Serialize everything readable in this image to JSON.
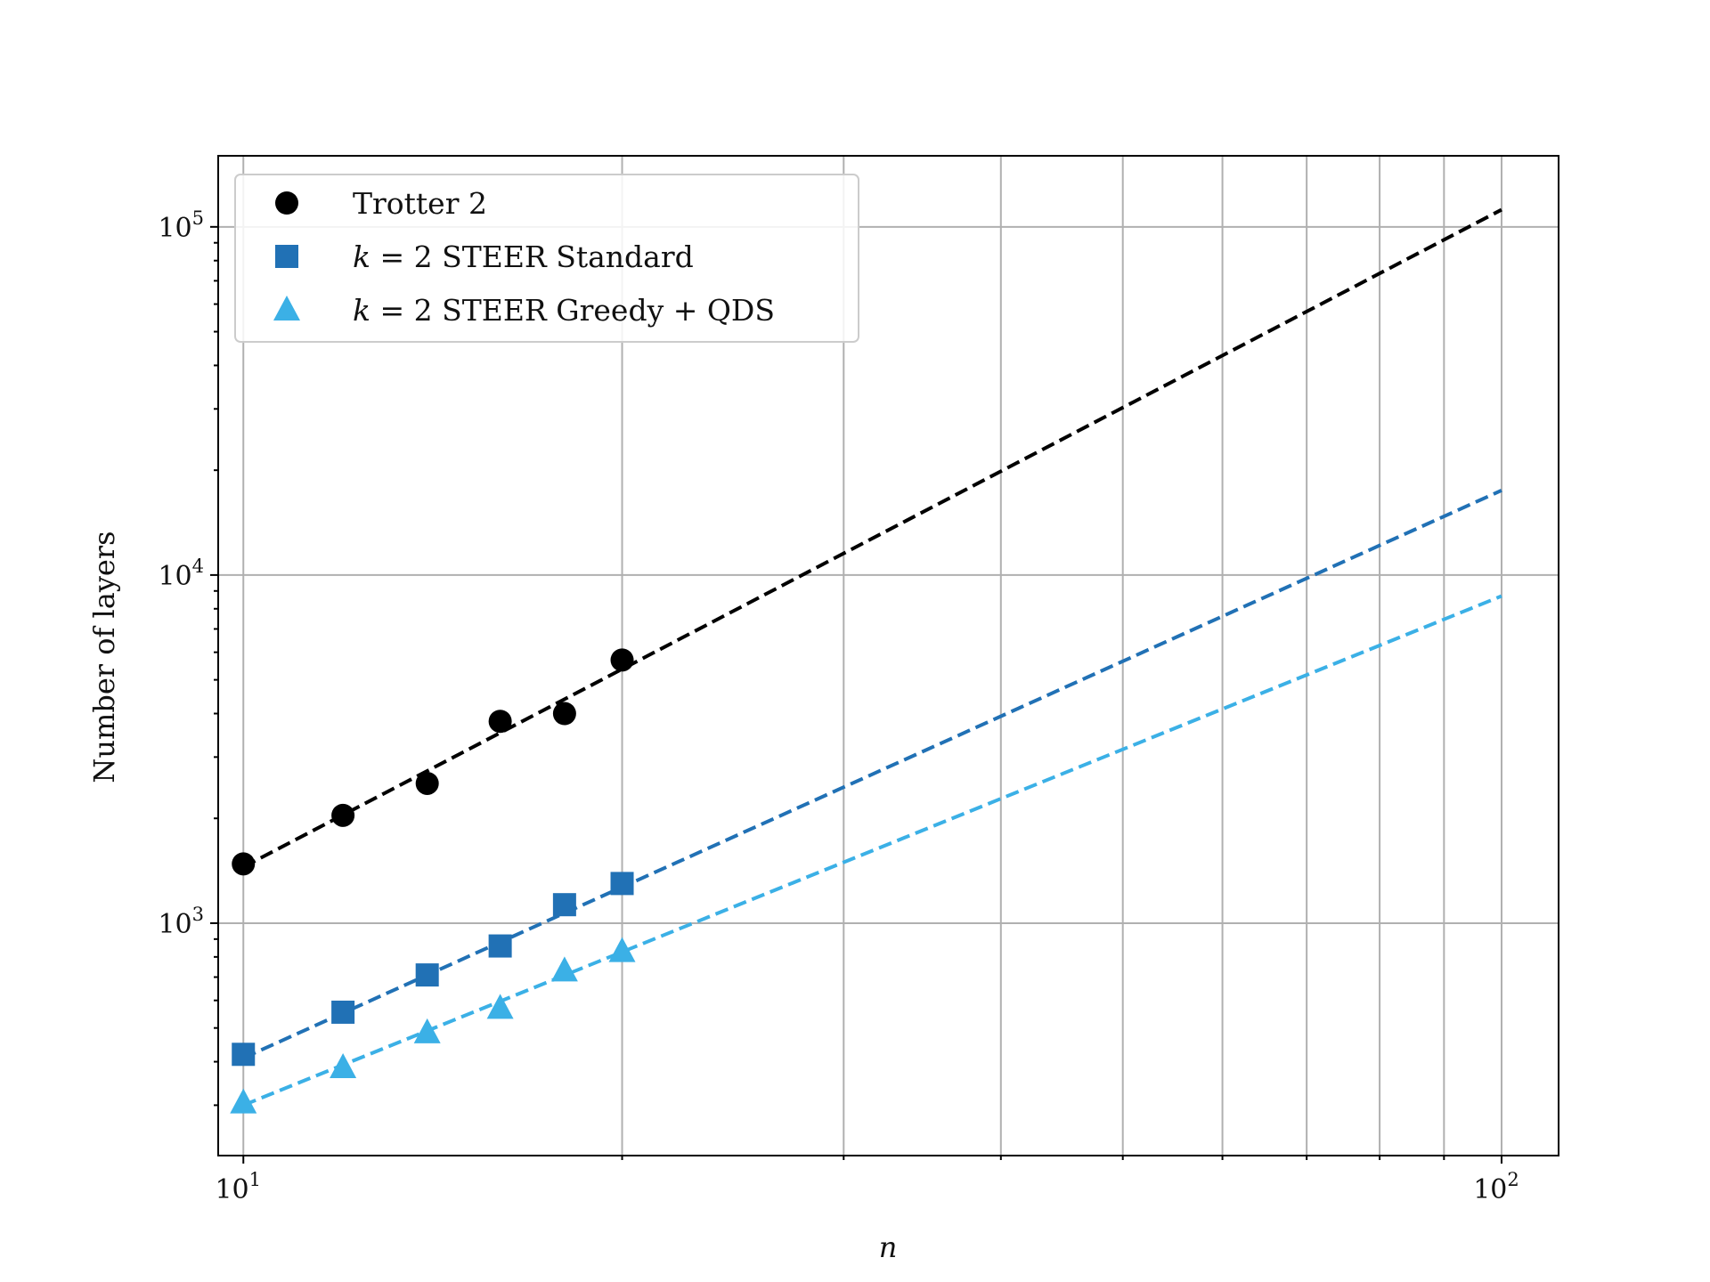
{
  "chart_data": {
    "type": "scatter",
    "xlabel": "n",
    "ylabel": "Number of layers",
    "x_scale": "log",
    "y_scale": "log",
    "xlim": [
      9.55,
      111
    ],
    "ylim": [
      215,
      160000
    ],
    "grid": true,
    "legend_position": "top-left",
    "x_ticks": [
      {
        "value": 10,
        "base": "10",
        "exp": "1"
      },
      {
        "value": 100,
        "base": "10",
        "exp": "2"
      }
    ],
    "y_ticks": [
      {
        "value": 1000,
        "base": "10",
        "exp": "3"
      },
      {
        "value": 10000,
        "base": "10",
        "exp": "4"
      },
      {
        "value": 100000,
        "base": "10",
        "exp": "5"
      }
    ],
    "series": [
      {
        "name": "Trotter 2",
        "legend_prefix": "",
        "legend_text": "Trotter 2",
        "marker": "circle",
        "color": "#000000",
        "x": [
          10,
          12,
          14,
          16,
          18,
          20
        ],
        "y": [
          1480,
          2040,
          2520,
          3800,
          4000,
          5700
        ],
        "fit": {
          "x": [
            10,
            100
          ],
          "y": [
            1450,
            112000
          ]
        }
      },
      {
        "name": "k = 2 STEER Standard",
        "legend_prefix": "k",
        "legend_text": " = 2 STEER Standard",
        "marker": "square",
        "color": "#2171b5",
        "x": [
          10,
          12,
          14,
          16,
          18,
          20
        ],
        "y": [
          420,
          555,
          710,
          860,
          1130,
          1300
        ],
        "fit": {
          "x": [
            10,
            100
          ],
          "y": [
            410,
            17500
          ]
        }
      },
      {
        "name": "k = 2 STEER Greedy + QDS",
        "legend_prefix": "k",
        "legend_text": " = 2 STEER Greedy + QDS",
        "marker": "triangle",
        "color": "#3bb0e6",
        "x": [
          10,
          12,
          14,
          16,
          18,
          20
        ],
        "y": [
          305,
          385,
          485,
          570,
          730,
          830
        ],
        "fit": {
          "x": [
            10,
            100
          ],
          "y": [
            300,
            8700
          ]
        }
      }
    ]
  }
}
